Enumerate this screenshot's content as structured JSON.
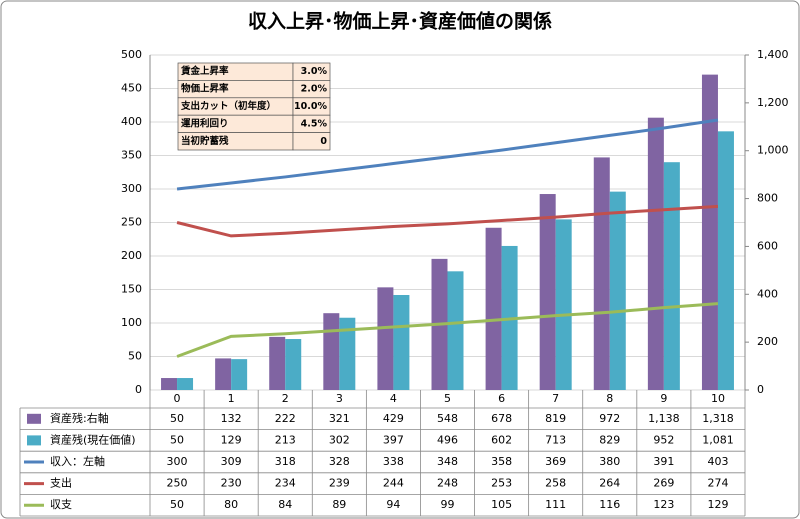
{
  "chart_data": {
    "type": "bar-line-table",
    "title": "収入上昇･物価上昇･資産価値の関係",
    "categories": [
      "0",
      "1",
      "2",
      "3",
      "4",
      "5",
      "6",
      "7",
      "8",
      "9",
      "10"
    ],
    "series": [
      {
        "name": "資産残:右軸",
        "color": "#8064a2",
        "kind": "bar",
        "axis": "y2",
        "values": [
          50,
          132,
          222,
          321,
          429,
          548,
          678,
          819,
          972,
          1138,
          1318
        ],
        "value_labels": [
          "50",
          "132",
          "222",
          "321",
          "429",
          "548",
          "678",
          "819",
          "972",
          "1,138",
          "1,318"
        ]
      },
      {
        "name": "資産残(現在価値)",
        "color": "#4bacc6",
        "kind": "bar",
        "axis": "y2",
        "values": [
          50,
          129,
          213,
          302,
          397,
          496,
          602,
          713,
          829,
          952,
          1081
        ],
        "value_labels": [
          "50",
          "129",
          "213",
          "302",
          "397",
          "496",
          "602",
          "713",
          "829",
          "952",
          "1,081"
        ]
      },
      {
        "name": "収入：左軸",
        "color": "#4f81bd",
        "kind": "line",
        "values": [
          300,
          309,
          318,
          328,
          338,
          348,
          358,
          369,
          380,
          391,
          403
        ]
      },
      {
        "name": "支出",
        "color": "#c0504d",
        "kind": "line",
        "values": [
          250,
          230,
          234,
          239,
          244,
          248,
          253,
          258,
          264,
          269,
          274
        ]
      },
      {
        "name": "収支",
        "color": "#9bbb59",
        "kind": "line",
        "values": [
          50,
          80,
          84,
          89,
          94,
          99,
          105,
          111,
          116,
          123,
          129
        ]
      }
    ],
    "ylim": [
      0,
      500
    ],
    "yticks": [
      0,
      50,
      100,
      150,
      200,
      250,
      300,
      350,
      400,
      450,
      500
    ],
    "y2lim": [
      0,
      1400
    ],
    "y2ticks": [
      0,
      200,
      400,
      600,
      800,
      {
        "value": 1000,
        "label": "1,000"
      },
      {
        "value": 1200,
        "label": "1,200"
      },
      {
        "value": 1400,
        "label": "1,400"
      }
    ],
    "grid": true,
    "parameters": [
      {
        "label": "賃金上昇率",
        "value": "3.0%"
      },
      {
        "label": "物価上昇率",
        "value": "2.0%"
      },
      {
        "label": "支出カット（初年度）",
        "value": "10.0%"
      },
      {
        "label": "運用利回り",
        "value": "4.5%"
      },
      {
        "label": "当初貯蓄残",
        "value": "0"
      }
    ]
  }
}
